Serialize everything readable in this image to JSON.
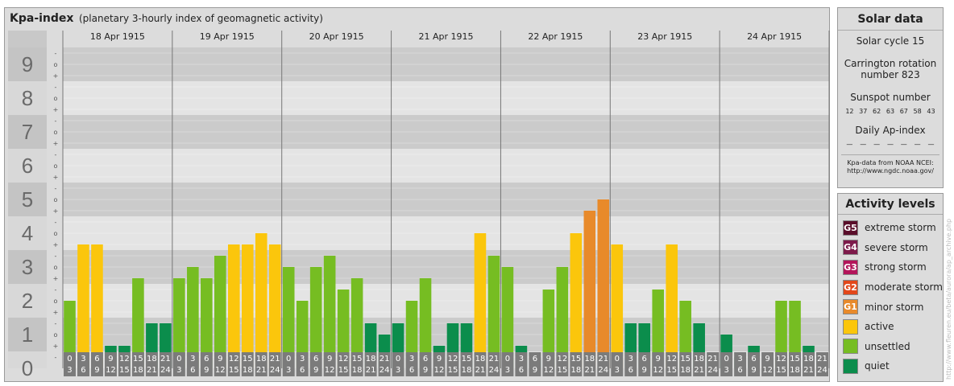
{
  "header": {
    "title": "Kpa-index",
    "subtitle": "(planetary 3-hourly index of geomagnetic activity)"
  },
  "chart_data": {
    "type": "bar",
    "title": "Kpa-index",
    "subtitle": "(planetary 3-hourly index of geomagnetic activity)",
    "ylim": [
      0,
      9.5
    ],
    "y_ticks": [
      "0",
      "1",
      "2",
      "3",
      "4",
      "5",
      "6",
      "7",
      "8",
      "9"
    ],
    "y_subticks": [
      "o",
      "+",
      "-"
    ],
    "days": [
      "18 Apr 1915",
      "19 Apr 1915",
      "20 Apr 1915",
      "21 Apr 1915",
      "22 Apr 1915",
      "23 Apr 1915",
      "24 Apr 1915"
    ],
    "intervals": [
      [
        "0",
        "3"
      ],
      [
        "3",
        "6"
      ],
      [
        "6",
        "9"
      ],
      [
        "9",
        "12"
      ],
      [
        "12",
        "15"
      ],
      [
        "15",
        "18"
      ],
      [
        "18",
        "21"
      ],
      [
        "21",
        "24"
      ]
    ],
    "values": [
      [
        2.0,
        3.667,
        3.667,
        0.667,
        0.667,
        2.667,
        1.333,
        1.333
      ],
      [
        2.667,
        3.0,
        2.667,
        3.333,
        3.667,
        3.667,
        4.0,
        3.667
      ],
      [
        3.0,
        2.0,
        3.0,
        3.333,
        2.333,
        2.667,
        1.333,
        1.0
      ],
      [
        1.333,
        2.0,
        2.667,
        0.667,
        1.333,
        1.333,
        4.0,
        3.333
      ],
      [
        3.0,
        0.667,
        0.333,
        2.333,
        3.0,
        4.0,
        4.667,
        5.0
      ],
      [
        3.667,
        1.333,
        1.333,
        2.333,
        3.667,
        2.0,
        1.333,
        0.333
      ],
      [
        1.0,
        0.333,
        0.667,
        0.0,
        2.0,
        2.0,
        0.667,
        0.333
      ]
    ],
    "colors": {
      "quiet": "#0b8d4c",
      "unsettled": "#76bd22",
      "active": "#fbc60c",
      "minor": "#e88a2a",
      "moderate": "#e2471a"
    }
  },
  "solar": {
    "title": "Solar data",
    "cycle": "Solar cycle 15",
    "carrington_line1": "Carrington rotation",
    "carrington_line2": "number 823",
    "sunspot_title": "Sunspot number",
    "sunspot_values": [
      "12",
      "37",
      "62",
      "63",
      "67",
      "58",
      "43"
    ],
    "ap_title": "Daily Ap-index",
    "ap_values": [
      "—",
      "—",
      "—",
      "—",
      "—",
      "—",
      "—"
    ],
    "source_line1": "Kpa-data from NOAA NCEI:",
    "source_line2": "http://www.ngdc.noaa.gov/"
  },
  "levels": {
    "title": "Activity levels",
    "items": [
      {
        "code": "G5",
        "label": "extreme storm",
        "color": "#5a0e2a"
      },
      {
        "code": "G4",
        "label": "severe storm",
        "color": "#7d1a4a"
      },
      {
        "code": "G3",
        "label": "strong storm",
        "color": "#b3155a"
      },
      {
        "code": "G2",
        "label": "moderate storm",
        "color": "#e2471a"
      },
      {
        "code": "G1",
        "label": "minor storm",
        "color": "#e88a2a"
      },
      {
        "code": "",
        "label": "active",
        "color": "#fbc60c"
      },
      {
        "code": "",
        "label": "unsettled",
        "color": "#76bd22"
      },
      {
        "code": "",
        "label": "quiet",
        "color": "#0b8d4c"
      }
    ]
  },
  "credit": "http://www.fleuren.eu/beta/aurora/ap_archive.php"
}
